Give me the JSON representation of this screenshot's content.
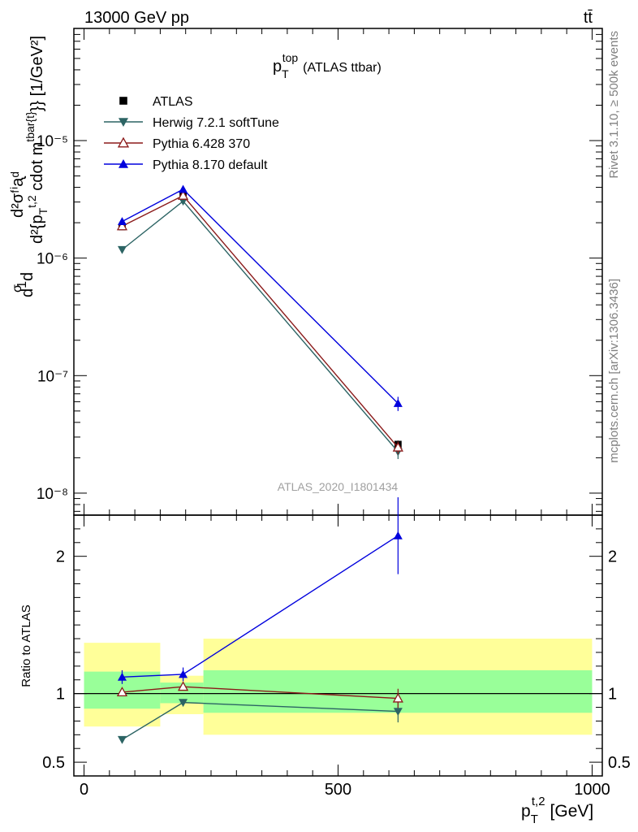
{
  "header": {
    "left": "13000 GeV pp",
    "right": "tt̄"
  },
  "plot_title": {
    "base": "p",
    "sub": "T",
    "sup": "top",
    "suffix": "(ATLAS ttbar)"
  },
  "side_labels": {
    "rivet": "Rivet 3.1.10, ≥ 500k events",
    "mcplots": "mcplots.cern.ch [arXiv:1306.3436]"
  },
  "analysis_label": "ATLAS_2020_I1801434",
  "main_ylabel": {
    "frac1": "1",
    "frac_sigma": "σ",
    "d_letter": "d",
    "numerator": "d²σᶠⁱᶏᵈ",
    "denominator": "d²{p",
    "denominator_sub": "T",
    "denominator_sup": "t,2",
    "denominator_rest": " cdot m",
    "denominator_sup2": "tbar{t}",
    "denominator_tail": "}} [1/GeV²]"
  },
  "ratio_ylabel": "Ratio to ATLAS",
  "xlabel": {
    "base": "p",
    "sub": "T",
    "sup": "t,2",
    "unit": "[GeV]"
  },
  "legend": [
    {
      "label": "ATLAS",
      "color": "#000000",
      "marker": "square-filled"
    },
    {
      "label": "Herwig 7.2.1 softTune",
      "color": "#2c6464",
      "marker": "triangle-down-filled"
    },
    {
      "label": "Pythia 6.428 370",
      "color": "#8b1a1a",
      "marker": "triangle-up-open"
    },
    {
      "label": "Pythia 8.170 default",
      "color": "#0000dd",
      "marker": "triangle-up-filled"
    }
  ],
  "chart_data": [
    {
      "type": "line",
      "panel": "main",
      "yscale": "log",
      "xlim": [
        -20,
        1020
      ],
      "ylim": [
        6.5e-09,
        9e-05
      ],
      "ytick_labels": [
        "10⁻⁸",
        "10⁻⁷",
        "10⁻⁶",
        "10⁻⁵"
      ],
      "ytick_values": [
        1e-08,
        1e-07,
        1e-06,
        1e-05
      ],
      "bin_edges": [
        0,
        150,
        235,
        1000
      ],
      "x": [
        75,
        195,
        618
      ],
      "series": [
        {
          "name": "ATLAS",
          "values": [
            1.85e-06,
            3.4e-06,
            2.6e-08
          ],
          "errors": [
            8e-08,
            1.2e-07,
            2e-09
          ]
        },
        {
          "name": "Herwig 7.2.1 softTune",
          "values": [
            1.18e-06,
            3.05e-06,
            2.25e-08
          ],
          "errors": [
            4e-08,
            8e-08,
            3e-09
          ]
        },
        {
          "name": "Pythia 6.428 370",
          "values": [
            1.87e-06,
            3.4e-06,
            2.45e-08
          ],
          "errors": [
            5e-08,
            1e-07,
            3e-09
          ]
        },
        {
          "name": "Pythia 8.170 default",
          "values": [
            2.05e-06,
            3.85e-06,
            5.8e-08
          ],
          "errors": [
            1.2e-07,
            2e-07,
            8e-09
          ]
        }
      ]
    },
    {
      "type": "line",
      "panel": "ratio",
      "xlim": [
        -20,
        1020
      ],
      "ylim": [
        0.4,
        2.3
      ],
      "ytick_labels": [
        "0.5",
        "1",
        "2"
      ],
      "ytick_values": [
        0.5,
        1,
        2
      ],
      "xtick_labels": [
        "0",
        "500",
        "1000"
      ],
      "xtick_values": [
        0,
        500,
        1000
      ],
      "bands": {
        "bin_edges": [
          0,
          150,
          235,
          1000
        ],
        "inner_low": [
          0.89,
          0.93,
          0.86
        ],
        "inner_high": [
          1.16,
          1.08,
          1.17
        ],
        "outer_low": [
          0.76,
          0.85,
          0.7
        ],
        "outer_high": [
          1.37,
          1.13,
          1.4
        ],
        "inner_color": "#99ff99",
        "outer_color": "#ffff99"
      },
      "x": [
        75,
        195,
        618
      ],
      "series": [
        {
          "name": "Herwig 7.2.1 softTune",
          "values": [
            0.665,
            0.935,
            0.87
          ],
          "errors": [
            0.025,
            0.025,
            0.08
          ]
        },
        {
          "name": "Pythia 6.428 370",
          "values": [
            1.01,
            1.05,
            0.965
          ],
          "errors": [
            0.02,
            0.025,
            0.07
          ]
        },
        {
          "name": "Pythia 8.170 default",
          "values": [
            1.12,
            1.14,
            2.15
          ],
          "errors": [
            0.05,
            0.05,
            0.28
          ]
        }
      ]
    }
  ]
}
